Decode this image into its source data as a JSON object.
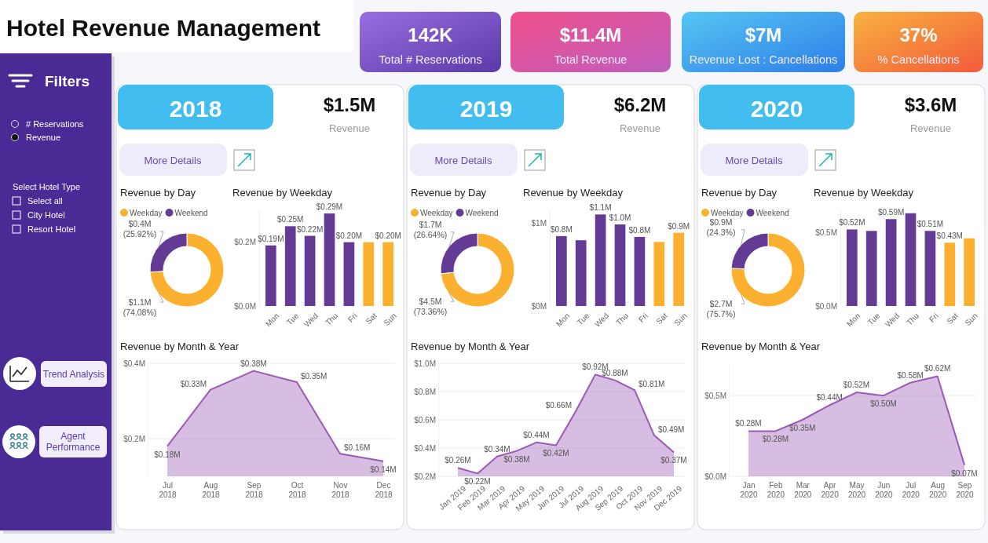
{
  "chart_data": [
    {
      "type": "other",
      "title": "Hotel Revenue Management",
      "annotations": [
        "142K",
        "Total # Reservations",
        "$11.4M",
        "Total Revenue",
        "$7M",
        "Revenue Lost : Cancellations",
        "37%",
        "% Cancellations"
      ]
    },
    {
      "type": "other",
      "title": "Filters",
      "annotations": [
        "# Reservations",
        "Revenue",
        "Select Hotel Type",
        "Select all",
        "City Hotel",
        "Resort Hotel",
        "Trend Analysis",
        "Agent Performance"
      ]
    },
    {
      "type": "other",
      "title": "2018",
      "annotations": [
        "$1.5M",
        "Revenue",
        "More Details"
      ]
    },
    {
      "type": "donut",
      "title": "Revenue by Day",
      "categories": [
        "Weekday",
        "Weekend"
      ],
      "values": [
        74.08,
        25.92
      ],
      "colors": [
        "#fbb12f",
        "#643b94"
      ],
      "value_labels": [
        "$1.1M (74.08%)",
        "$0.4M (25.92%)"
      ],
      "legend": "top left"
    },
    {
      "type": "bar",
      "title": "Revenue by Weekday",
      "categories": [
        "Mon",
        "Tue",
        "Wed",
        "Thu",
        "Fri",
        "Sat",
        "Sun"
      ],
      "values": [
        0.19,
        0.25,
        0.22,
        0.29,
        0.2,
        0.2,
        0.2
      ],
      "colors": [
        "#643b94",
        "#643b94",
        "#643b94",
        "#643b94",
        "#643b94",
        "#fbb12f",
        "#fbb12f"
      ],
      "ylim": [
        0,
        0.3
      ],
      "yticks": [
        {
          "value": 0,
          "label": "$0.0M"
        },
        {
          "value": 0.2,
          "label": "$0.2M"
        }
      ],
      "value_labels": [
        "$0.19M",
        "$0.25M",
        "$0.22M",
        "$0.29M",
        "$0.20M",
        null,
        "$0.20M"
      ]
    },
    {
      "type": "area",
      "title": "Revenue by Month & Year",
      "categories": [
        "Jul 2018",
        "Aug 2018",
        "Sep 2018",
        "Oct 2018",
        "Nov 2018",
        "Dec 2018"
      ],
      "values": [
        0.18,
        0.33,
        0.38,
        0.35,
        0.16,
        0.14
      ],
      "color": "#9b59b6",
      "ylim": [
        0.1,
        0.4
      ],
      "yticks": [
        {
          "value": 0.2,
          "label": "$0.2M"
        },
        {
          "value": 0.4,
          "label": "$0.4M"
        }
      ],
      "grid": "y",
      "value_labels": [
        "$0.18M",
        "$0.33M",
        "$0.38M",
        "$0.35M",
        "$0.16M",
        "$0.14M"
      ]
    },
    {
      "type": "other",
      "title": "2019",
      "annotations": [
        "$6.2M",
        "Revenue",
        "More Details"
      ]
    },
    {
      "type": "donut",
      "title": "Revenue by Day",
      "categories": [
        "Weekday",
        "Weekend"
      ],
      "values": [
        73.36,
        26.64
      ],
      "colors": [
        "#fbb12f",
        "#643b94"
      ],
      "value_labels": [
        "$4.5M (73.36%)",
        "$1.7M (26.64%)"
      ],
      "legend": "top left"
    },
    {
      "type": "bar",
      "title": "Revenue by Weekday",
      "categories": [
        "Mon",
        "Tue",
        "Wed",
        "Thu",
        "Fri",
        "Sat",
        "Sun"
      ],
      "values": [
        0.84,
        0.79,
        1.1,
        0.98,
        0.83,
        0.77,
        0.88
      ],
      "colors": [
        "#643b94",
        "#643b94",
        "#643b94",
        "#643b94",
        "#643b94",
        "#fbb12f",
        "#fbb12f"
      ],
      "ylim": [
        0,
        1.15
      ],
      "yticks": [
        {
          "value": 0,
          "label": "$0M"
        },
        {
          "value": 1,
          "label": "$1M"
        }
      ],
      "value_labels": [
        "$0.8M",
        null,
        "$1.1M",
        "$1.0M",
        "$0.8M",
        null,
        "$0.9M"
      ]
    },
    {
      "type": "area",
      "title": "Revenue by Month & Year",
      "categories": [
        "Jan 2019",
        "Feb 2019",
        "Mar 2019",
        "Apr 2019",
        "May 2019",
        "Jun 2019",
        "Jul 2019",
        "Aug 2019",
        "Sep 2019",
        "Oct 2019",
        "Nov 2019",
        "Dec 2019"
      ],
      "values": [
        0.26,
        0.22,
        0.34,
        0.38,
        0.44,
        0.42,
        0.66,
        0.92,
        0.88,
        0.81,
        0.49,
        0.37
      ],
      "color": "#9b59b6",
      "ylim": [
        0.2,
        1.0
      ],
      "yticks": [
        {
          "value": 0.2,
          "label": "$0.2M"
        },
        {
          "value": 0.4,
          "label": "$0.4M"
        },
        {
          "value": 0.6,
          "label": "$0.6M"
        },
        {
          "value": 0.8,
          "label": "$0.8M"
        },
        {
          "value": 1.0,
          "label": "$1.0M"
        }
      ],
      "grid": "y",
      "value_labels": [
        "$0.26M",
        "$0.22M",
        "$0.34M",
        "$0.38M",
        "$0.44M",
        "$0.42M",
        "$0.66M",
        "$0.92M",
        "$0.88M",
        "$0.81M",
        "$0.49M",
        "$0.37M"
      ]
    },
    {
      "type": "other",
      "title": "2020",
      "annotations": [
        "$3.6M",
        "Revenue",
        "More Details"
      ]
    },
    {
      "type": "donut",
      "title": "Revenue by Day",
      "categories": [
        "Weekday",
        "Weekend"
      ],
      "values": [
        75.7,
        24.3
      ],
      "colors": [
        "#fbb12f",
        "#643b94"
      ],
      "value_labels": [
        "$2.7M (75.7%)",
        "$0.9M (24.3%)"
      ],
      "legend": "top left"
    },
    {
      "type": "bar",
      "title": "Revenue by Weekday",
      "categories": [
        "Mon",
        "Tue",
        "Wed",
        "Thu",
        "Fri",
        "Sat",
        "Sun"
      ],
      "values": [
        0.52,
        0.51,
        0.59,
        0.63,
        0.51,
        0.43,
        0.46
      ],
      "colors": [
        "#643b94",
        "#643b94",
        "#643b94",
        "#643b94",
        "#643b94",
        "#fbb12f",
        "#fbb12f"
      ],
      "ylim": [
        0,
        0.65
      ],
      "yticks": [
        {
          "value": 0,
          "label": "$0.0M"
        },
        {
          "value": 0.5,
          "label": "$0.5M"
        }
      ],
      "value_labels": [
        "$0.52M",
        null,
        "$0.59M",
        null,
        "$0.51M",
        "$0.43M",
        null
      ]
    },
    {
      "type": "area",
      "title": "Revenue by Month & Year",
      "categories": [
        "Jan 2020",
        "Feb 2020",
        "Mar 2020",
        "Apr 2020",
        "May 2020",
        "Jun 2020",
        "Jul 2020",
        "Aug 2020",
        "Sep 2020"
      ],
      "values": [
        0.28,
        0.28,
        0.35,
        0.44,
        0.52,
        0.5,
        0.58,
        0.62,
        0.07
      ],
      "color": "#9b59b6",
      "ylim": [
        0,
        0.7
      ],
      "yticks": [
        {
          "value": 0,
          "label": "$0.0M"
        },
        {
          "value": 0.5,
          "label": "$0.5M"
        }
      ],
      "grid": "y",
      "value_labels": [
        "$0.28M",
        "$0.28M",
        "$0.35M",
        "$0.44M",
        "$0.52M",
        "$0.50M",
        "$0.58M",
        "$0.62M",
        "$0.07M"
      ]
    }
  ]
}
